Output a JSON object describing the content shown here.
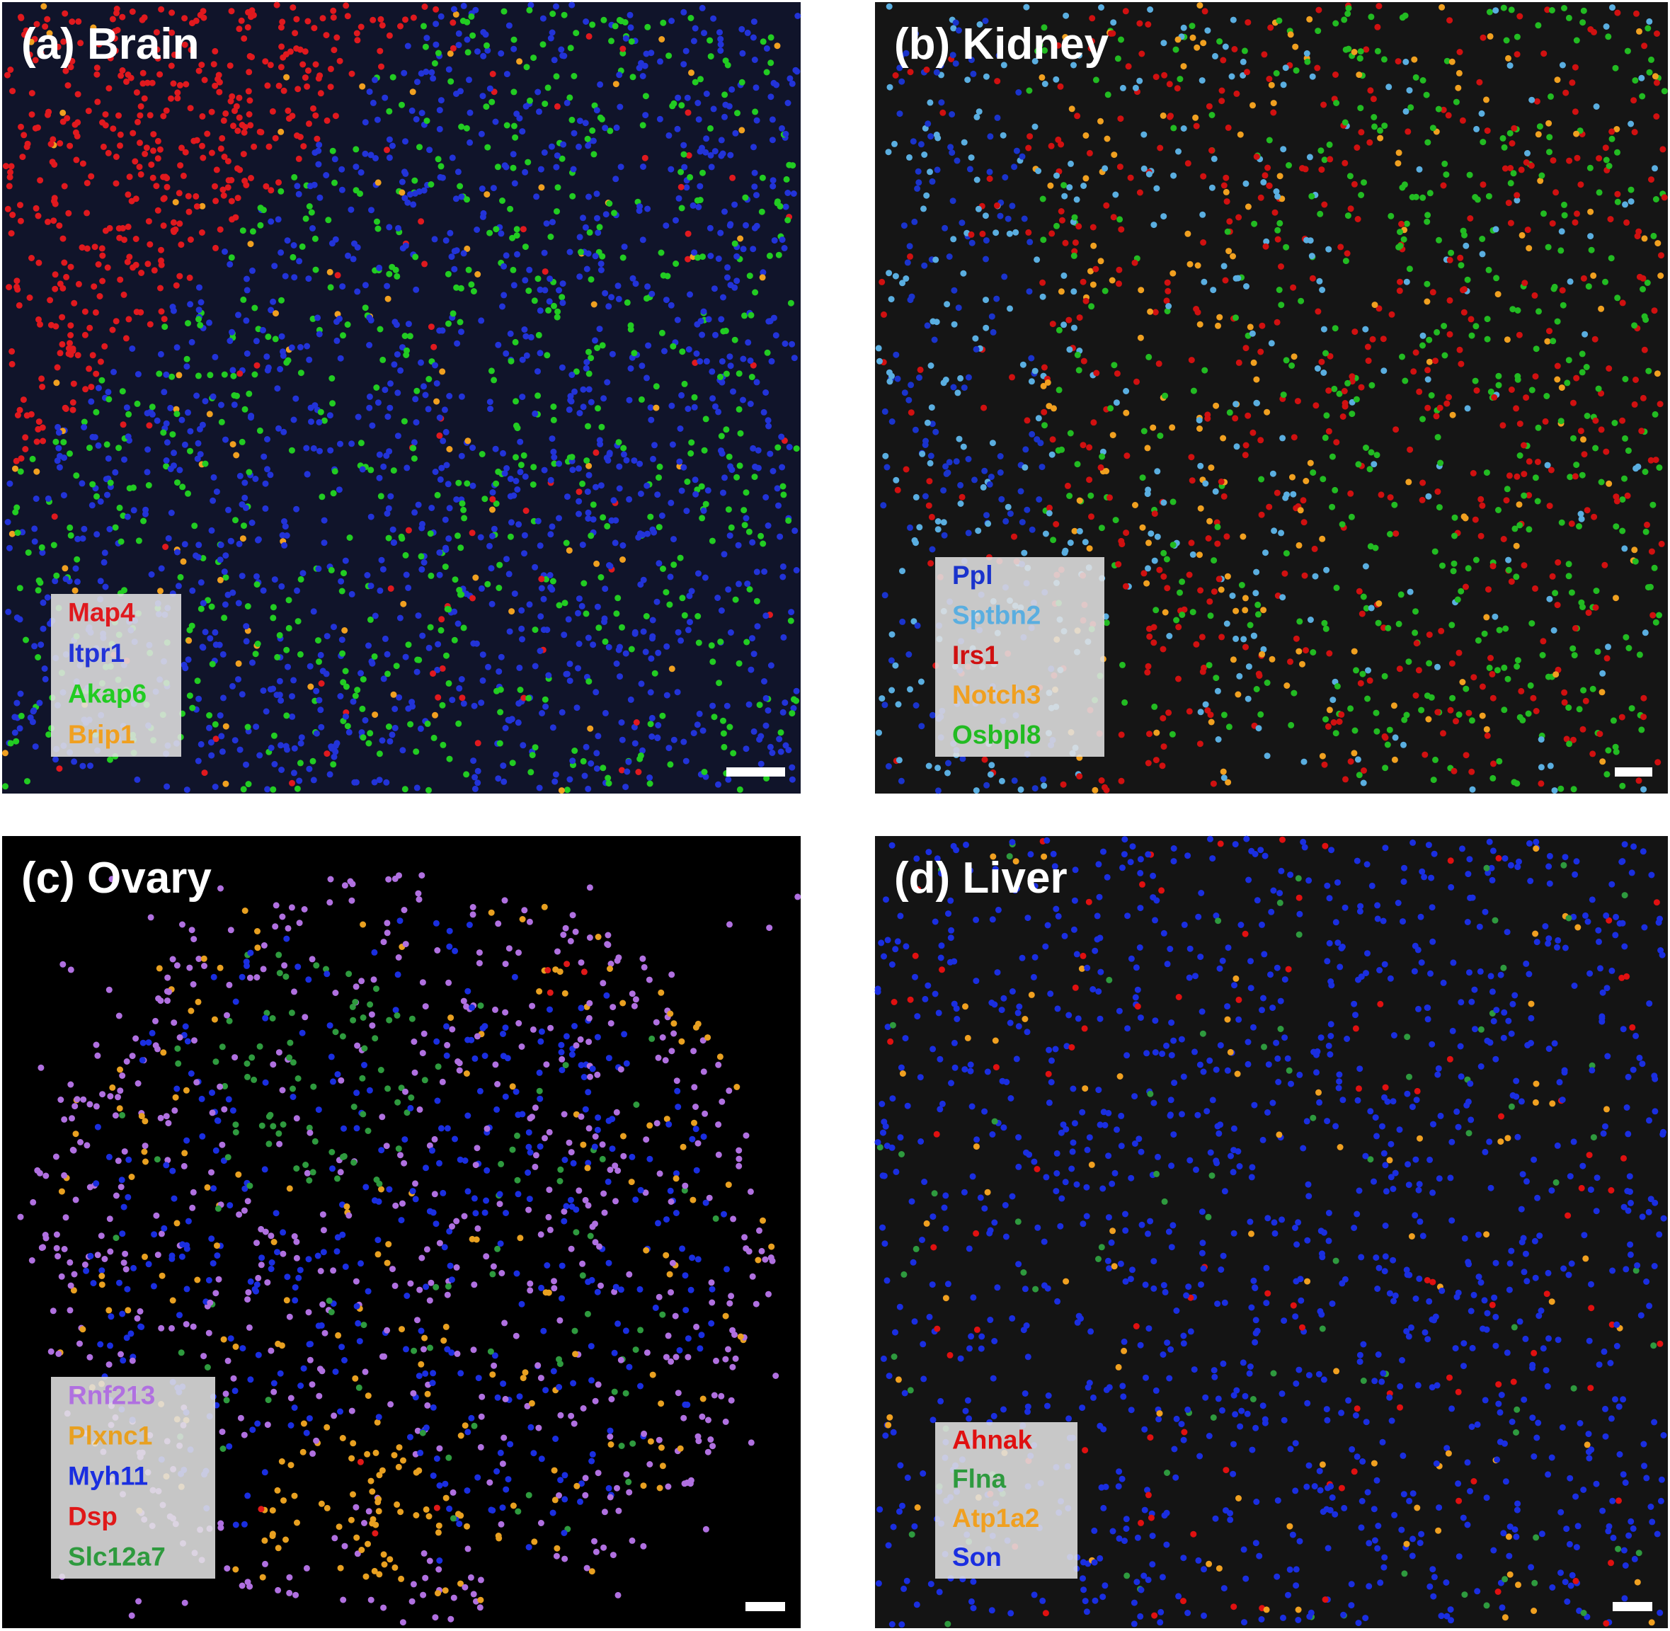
{
  "panels": [
    {
      "title": "(a) Brain",
      "legend": [
        {
          "name": "Map4",
          "color": "#e0191e"
        },
        {
          "name": "Itpr1",
          "color": "#2233d8"
        },
        {
          "name": "Akap6",
          "color": "#22cc22"
        },
        {
          "name": "Brip1",
          "color": "#f0a020"
        }
      ]
    },
    {
      "title": "(b) Kidney",
      "legend": [
        {
          "name": "Ppl",
          "color": "#1a33cc"
        },
        {
          "name": "Sptbn2",
          "color": "#5aaee0"
        },
        {
          "name": "Irs1",
          "color": "#d01010"
        },
        {
          "name": "Notch3",
          "color": "#f0a020"
        },
        {
          "name": "Osbpl8",
          "color": "#22bb22"
        }
      ]
    },
    {
      "title": "(c) Ovary",
      "legend": [
        {
          "name": "Rnf213",
          "color": "#b070e0"
        },
        {
          "name": "Plxnc1",
          "color": "#e8a020"
        },
        {
          "name": "Myh11",
          "color": "#1a2ee0"
        },
        {
          "name": "Dsp",
          "color": "#e01818"
        },
        {
          "name": "Slc12a7",
          "color": "#2e9a3e"
        }
      ]
    },
    {
      "title": "(d) Liver",
      "legend": [
        {
          "name": "Ahnak",
          "color": "#e01010"
        },
        {
          "name": "Flna",
          "color": "#2e9a3e"
        },
        {
          "name": "Atp1a2",
          "color": "#f0a020"
        },
        {
          "name": "Son",
          "color": "#1a2ee0"
        }
      ]
    }
  ]
}
